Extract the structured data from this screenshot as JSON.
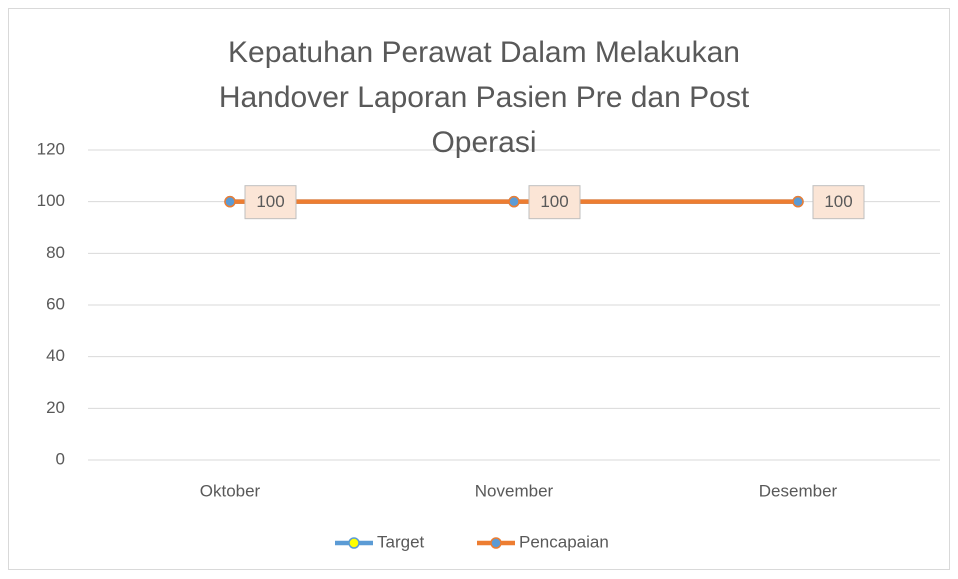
{
  "chart_data": {
    "type": "line",
    "title": "Kepatuhan Perawat Dalam Melakukan Handover Laporan Pasien Pre dan Post Operasi",
    "categories": [
      "Oktober",
      "November",
      "Desember"
    ],
    "series": [
      {
        "name": "Target",
        "color": "#5b9bd5",
        "marker_color": "#ffff00",
        "values": [
          100,
          100,
          100
        ]
      },
      {
        "name": "Pencapaian",
        "color": "#ed7d31",
        "marker_color": "#5b9bd5",
        "values": [
          100,
          100,
          100
        ],
        "data_labels": true
      }
    ],
    "ylim": [
      0,
      120
    ],
    "yticks": [
      0,
      20,
      40,
      60,
      80,
      100,
      120
    ],
    "grid": true,
    "legend": "bottom"
  }
}
